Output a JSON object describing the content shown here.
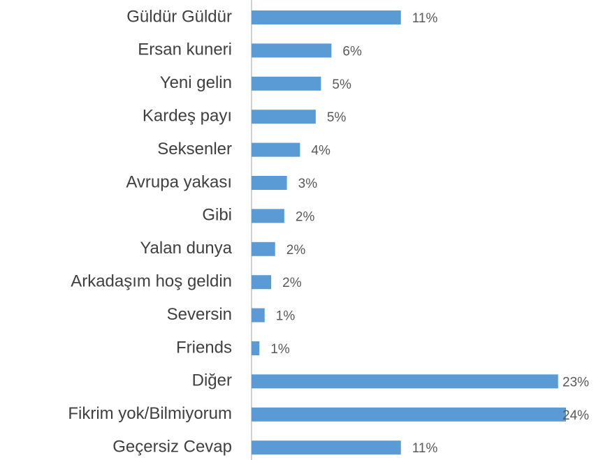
{
  "chart_data": {
    "type": "bar",
    "orientation": "horizontal",
    "categories": [
      "Güldür Güldür",
      "Ersan kuneri",
      "Yeni gelin",
      "Kardeş payı",
      "Seksenler",
      "Avrupa yakası",
      "Gibi",
      "Yalan dunya",
      "Arkadaşım hoş geldin",
      "Seversin",
      "Friends",
      "Diğer",
      "Fikrim yok/Bilmiyorum",
      "Geçersiz Cevap"
    ],
    "values": [
      11.4,
      6.1,
      5.3,
      4.9,
      3.7,
      2.7,
      2.5,
      1.8,
      1.5,
      1.0,
      0.6,
      23.4,
      24.0,
      11.4
    ],
    "value_labels": [
      "11%",
      "6%",
      "5%",
      "5%",
      "4%",
      "3%",
      "2%",
      "2%",
      "2%",
      "1%",
      "1%",
      "23%",
      "24%",
      "11%"
    ],
    "color": "#5b9bd5",
    "xlim": [
      0,
      26
    ]
  }
}
